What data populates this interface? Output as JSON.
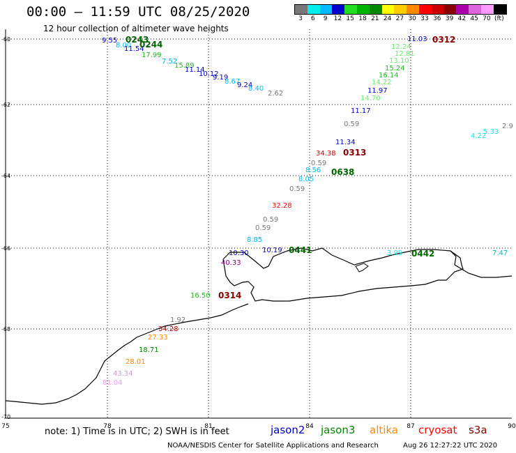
{
  "title": "00:00 — 11:59 UTC 08/25/2020",
  "subtitle": "12 hour collection of altimeter wave heights",
  "legend": {
    "colors": [
      "#777777",
      "#00eeee",
      "#00bbff",
      "#0000cc",
      "#22dd22",
      "#00b300",
      "#008800",
      "#ffff00",
      "#ffcc00",
      "#ff8800",
      "#ff0000",
      "#cc0000",
      "#880000",
      "#aa00aa",
      "#dd66dd",
      "#ff99ff",
      "#000000"
    ],
    "labels": [
      "3",
      "6",
      "9",
      "12",
      "15",
      "18",
      "21",
      "24",
      "27",
      "30",
      "33",
      "36",
      "39",
      "42",
      "45",
      "70",
      "(ft)"
    ]
  },
  "axes": {
    "x_ticks": [
      "75",
      "78",
      "81",
      "84",
      "87",
      "90"
    ],
    "y_ticks": [
      "-60",
      "-62",
      "-64",
      "-66",
      "-68",
      "-70"
    ]
  },
  "time_labels": [
    {
      "text": "0243",
      "color": "#006600"
    },
    {
      "text": "0244",
      "color": "#006600"
    },
    {
      "text": "0312",
      "color": "#880000"
    },
    {
      "text": "0313",
      "color": "#880000"
    },
    {
      "text": "0638",
      "color": "#006600"
    },
    {
      "text": "0441",
      "color": "#006600"
    },
    {
      "text": "0442",
      "color": "#006600"
    },
    {
      "text": "0314",
      "color": "#880000"
    }
  ],
  "wave_labels": [
    {
      "text": "9.55",
      "color": "#0000cc"
    },
    {
      "text": "8.00",
      "color": "#00bbff"
    },
    {
      "text": "11.54",
      "color": "#0000cc"
    },
    {
      "text": "17.99",
      "color": "#22bb22"
    },
    {
      "text": "7.52",
      "color": "#00bbff"
    },
    {
      "text": "15.89",
      "color": "#22bb22"
    },
    {
      "text": "11.14",
      "color": "#0000cc"
    },
    {
      "text": "10.12",
      "color": "#0000cc"
    },
    {
      "text": "9.19",
      "color": "#0000cc"
    },
    {
      "text": "8.67",
      "color": "#00bbff"
    },
    {
      "text": "9.24",
      "color": "#0000cc"
    },
    {
      "text": "8.40",
      "color": "#00bbff"
    },
    {
      "text": "2.62",
      "color": "#777777"
    },
    {
      "text": "11.03",
      "color": "#0000cc"
    },
    {
      "text": "12.24",
      "color": "#66ee66"
    },
    {
      "text": "12.81",
      "color": "#66ee66"
    },
    {
      "text": "13.10",
      "color": "#66ee66"
    },
    {
      "text": "15.24",
      "color": "#22bb22"
    },
    {
      "text": "16.14",
      "color": "#22bb22"
    },
    {
      "text": "14.22",
      "color": "#66ee66"
    },
    {
      "text": "11.97",
      "color": "#0000cc"
    },
    {
      "text": "14.70",
      "color": "#66ee66"
    },
    {
      "text": "11.17",
      "color": "#0000cc"
    },
    {
      "text": "0.59",
      "color": "#777777"
    },
    {
      "text": "11.34",
      "color": "#0000cc"
    },
    {
      "text": "34.38",
      "color": "#cc0000"
    },
    {
      "text": "0.59",
      "color": "#777777"
    },
    {
      "text": "8.56",
      "color": "#00bbff"
    },
    {
      "text": "8.05",
      "color": "#00bbff"
    },
    {
      "text": "0.59",
      "color": "#777777"
    },
    {
      "text": "32.28",
      "color": "#ff0000"
    },
    {
      "text": "0.59",
      "color": "#777777"
    },
    {
      "text": "0.59",
      "color": "#777777"
    },
    {
      "text": "8.85",
      "color": "#00bbff"
    },
    {
      "text": "10.30",
      "color": "#0000cc"
    },
    {
      "text": "40.33",
      "color": "#880088"
    },
    {
      "text": "10.19",
      "color": "#0000cc"
    },
    {
      "text": "3.99",
      "color": "#00eeee"
    },
    {
      "text": "7.47",
      "color": "#00bbbb"
    },
    {
      "text": "4.22",
      "color": "#00eeee"
    },
    {
      "text": "5.33",
      "color": "#00eeee"
    },
    {
      "text": "2.9",
      "color": "#777777"
    },
    {
      "text": "16.50",
      "color": "#22bb22"
    },
    {
      "text": "1.92",
      "color": "#777777"
    },
    {
      "text": "34.28",
      "color": "#cc0000"
    },
    {
      "text": "27.33",
      "color": "#ff8800"
    },
    {
      "text": "18.71",
      "color": "#008800"
    },
    {
      "text": "28.01",
      "color": "#ff8800"
    },
    {
      "text": "43.34",
      "color": "#cc99cc"
    },
    {
      "text": "81.04",
      "color": "#ee99ee"
    }
  ],
  "note": "note: 1) Time is in UTC; 2) SWH is in feet",
  "satellites": [
    {
      "name": "jason2",
      "color": "#0000cc"
    },
    {
      "name": "jason3",
      "color": "#008800"
    },
    {
      "name": "altika",
      "color": "#ff8800"
    },
    {
      "name": "cryosat",
      "color": "#ff0000"
    },
    {
      "name": "s3a",
      "color": "#880000"
    }
  ],
  "credit": "NOAA/NESDIS Center for Satellite Applications and Research",
  "timestamp": "Aug 26 12:27:22 UTC 2020"
}
